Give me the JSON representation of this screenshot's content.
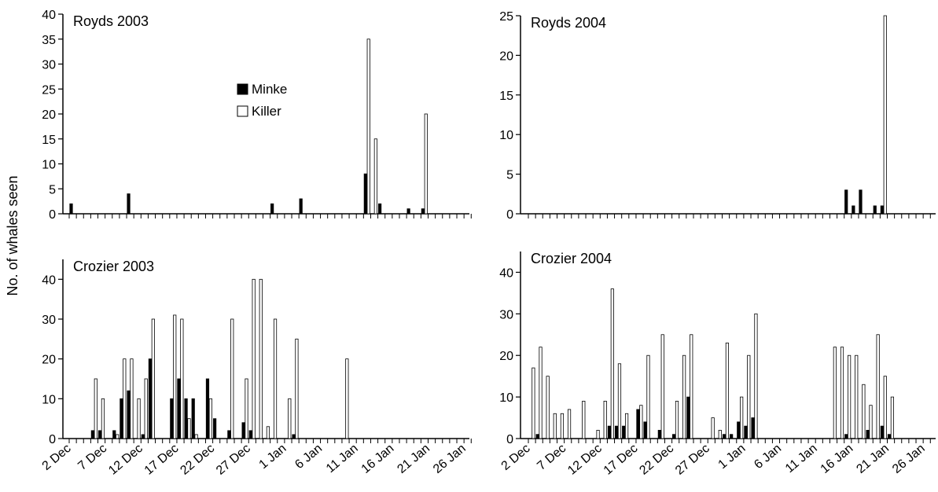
{
  "ylabel": "No. of whales seen",
  "chart_data": [
    {
      "type": "bar",
      "title": "Royds 2003",
      "ylim": [
        0,
        40
      ],
      "yticks": [
        0,
        5,
        10,
        15,
        20,
        25,
        30,
        35,
        40
      ],
      "series": [
        {
          "name": "Minke",
          "color": "#000000",
          "values": [
            2,
            0,
            0,
            0,
            0,
            0,
            0,
            0,
            4,
            0,
            0,
            0,
            0,
            0,
            0,
            0,
            0,
            0,
            0,
            0,
            0,
            0,
            0,
            0,
            0,
            0,
            0,
            0,
            2,
            0,
            0,
            0,
            3,
            0,
            0,
            0,
            0,
            0,
            0,
            0,
            0,
            8,
            0,
            2,
            0,
            0,
            0,
            1,
            0,
            1,
            0,
            0,
            0,
            0,
            0,
            0,
            0
          ]
        },
        {
          "name": "Killer",
          "color": "#ffffff",
          "values": [
            0,
            0,
            0,
            0,
            0,
            0,
            0,
            0,
            0,
            0,
            0,
            0,
            0,
            0,
            0,
            0,
            0,
            0,
            0,
            0,
            0,
            0,
            0,
            0,
            0,
            0,
            0,
            0,
            0,
            0,
            0,
            0,
            0,
            0,
            0,
            0,
            0,
            0,
            0,
            0,
            0,
            35,
            15,
            0,
            0,
            0,
            0,
            0,
            0,
            20,
            0,
            0,
            0,
            0,
            0,
            0,
            0
          ]
        }
      ]
    },
    {
      "type": "bar",
      "title": "Royds 2004",
      "ylim": [
        0,
        25
      ],
      "yticks": [
        0,
        5,
        10,
        15,
        20,
        25
      ],
      "series": [
        {
          "color": "#000000",
          "values": [
            0,
            0,
            0,
            0,
            0,
            0,
            0,
            0,
            0,
            0,
            0,
            0,
            0,
            0,
            0,
            0,
            0,
            0,
            0,
            0,
            0,
            0,
            0,
            0,
            0,
            0,
            0,
            0,
            0,
            0,
            0,
            0,
            0,
            0,
            0,
            0,
            0,
            0,
            0,
            0,
            0,
            0,
            0,
            0,
            3,
            1,
            3,
            0,
            1,
            1,
            0,
            0,
            0,
            0,
            0,
            0,
            0
          ]
        },
        {
          "color": "#ffffff",
          "values": [
            0,
            0,
            0,
            0,
            0,
            0,
            0,
            0,
            0,
            0,
            0,
            0,
            0,
            0,
            0,
            0,
            0,
            0,
            0,
            0,
            0,
            0,
            0,
            0,
            0,
            0,
            0,
            0,
            0,
            0,
            0,
            0,
            0,
            0,
            0,
            0,
            0,
            0,
            0,
            0,
            0,
            0,
            0,
            0,
            0,
            0,
            0,
            0,
            0,
            25,
            0,
            0,
            0,
            0,
            0,
            0,
            0
          ]
        }
      ]
    },
    {
      "type": "bar",
      "title": "Crozier 2003",
      "ylim": [
        0,
        45
      ],
      "yticks": [
        0,
        10,
        20,
        30,
        40
      ],
      "categories": [
        "2 Dec",
        null,
        null,
        null,
        null,
        "7 Dec",
        null,
        null,
        null,
        null,
        "12 Dec",
        null,
        null,
        null,
        null,
        "17 Dec",
        null,
        null,
        null,
        null,
        "22 Dec",
        null,
        null,
        null,
        null,
        "27 Dec",
        null,
        null,
        null,
        null,
        "1 Jan",
        null,
        null,
        null,
        null,
        "6 Jan",
        null,
        null,
        null,
        null,
        "11 Jan",
        null,
        null,
        null,
        null,
        "16 Jan",
        null,
        null,
        null,
        null,
        "21 Jan",
        null,
        null,
        null,
        null,
        "26 Jan",
        null
      ],
      "series": [
        {
          "color": "#000000",
          "values": [
            0,
            0,
            0,
            2,
            2,
            0,
            2,
            10,
            12,
            0,
            1,
            20,
            0,
            0,
            10,
            15,
            10,
            10,
            0,
            15,
            5,
            0,
            2,
            0,
            4,
            2,
            0,
            0,
            0,
            0,
            0,
            1,
            0,
            0,
            0,
            0,
            0,
            0,
            0,
            0,
            0,
            0,
            0,
            0,
            0,
            0,
            0,
            0,
            0,
            0,
            0,
            0,
            0,
            0,
            0,
            0,
            0
          ]
        },
        {
          "color": "#ffffff",
          "values": [
            0,
            0,
            0,
            15,
            10,
            0,
            1,
            20,
            20,
            10,
            15,
            30,
            0,
            0,
            31,
            30,
            5,
            1,
            0,
            10,
            0,
            0,
            30,
            0,
            15,
            40,
            40,
            3,
            30,
            0,
            10,
            25,
            0,
            0,
            0,
            0,
            0,
            0,
            20,
            0,
            0,
            0,
            0,
            0,
            0,
            0,
            0,
            0,
            0,
            0,
            0,
            0,
            0,
            0,
            0,
            0,
            0
          ]
        }
      ]
    },
    {
      "type": "bar",
      "title": "Crozier 2004",
      "ylim": [
        0,
        45
      ],
      "yticks": [
        0,
        10,
        20,
        30,
        40
      ],
      "categories": [
        "2 Dec",
        null,
        null,
        null,
        null,
        "7 Dec",
        null,
        null,
        null,
        null,
        "12 Dec",
        null,
        null,
        null,
        null,
        "17 Dec",
        null,
        null,
        null,
        null,
        "22 Dec",
        null,
        null,
        null,
        null,
        "27 Dec",
        null,
        null,
        null,
        null,
        "1 Jan",
        null,
        null,
        null,
        null,
        "6 Jan",
        null,
        null,
        null,
        null,
        "11 Jan",
        null,
        null,
        null,
        null,
        "16 Jan",
        null,
        null,
        null,
        null,
        "21 Jan",
        null,
        null,
        null,
        null,
        "26 Jan",
        null
      ],
      "series": [
        {
          "color": "#000000",
          "values": [
            0,
            1,
            0,
            0,
            0,
            0,
            0,
            0,
            0,
            0,
            0,
            3,
            3,
            3,
            0,
            7,
            4,
            0,
            2,
            0,
            1,
            0,
            10,
            0,
            0,
            0,
            0,
            1,
            1,
            4,
            3,
            5,
            0,
            0,
            0,
            0,
            0,
            0,
            0,
            0,
            0,
            0,
            0,
            0,
            1,
            0,
            0,
            2,
            0,
            3,
            1,
            0,
            0,
            0,
            0,
            0,
            0
          ]
        },
        {
          "color": "#ffffff",
          "values": [
            17,
            22,
            15,
            6,
            6,
            7,
            0,
            9,
            0,
            2,
            9,
            36,
            18,
            6,
            0,
            8,
            20,
            0,
            25,
            0,
            9,
            20,
            25,
            0,
            0,
            5,
            2,
            23,
            0,
            10,
            20,
            30,
            0,
            0,
            0,
            0,
            0,
            0,
            0,
            0,
            0,
            0,
            22,
            22,
            20,
            20,
            13,
            8,
            25,
            15,
            10,
            0,
            0,
            0,
            0,
            0,
            0
          ]
        }
      ]
    }
  ]
}
